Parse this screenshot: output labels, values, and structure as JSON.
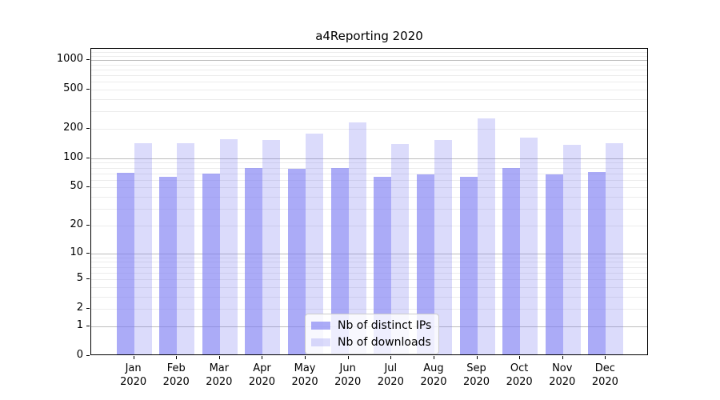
{
  "title": "a4Reporting 2020",
  "chart_data": {
    "type": "bar",
    "title": "a4Reporting 2020",
    "categories": [
      "Jan",
      "Feb",
      "Mar",
      "Apr",
      "May",
      "Jun",
      "Jul",
      "Aug",
      "Sep",
      "Oct",
      "Nov",
      "Dec"
    ],
    "category_year": "2020",
    "series": [
      {
        "name": "Nb of distinct IPs",
        "color": "rgba(122,122,242,0.63)",
        "values": [
          71,
          65,
          69,
          80,
          78,
          79,
          65,
          68,
          64,
          80,
          68,
          72
        ]
      },
      {
        "name": "Nb of downloads",
        "color": "rgba(122,122,242,0.27)",
        "values": [
          142,
          142,
          157,
          153,
          178,
          233,
          139,
          153,
          254,
          162,
          137,
          142
        ]
      }
    ],
    "xlabel": "",
    "ylabel": "",
    "yscale": "symlog",
    "ylim": [
      0,
      1300
    ],
    "yticks": [
      0,
      1,
      2,
      5,
      10,
      20,
      50,
      100,
      200,
      500,
      1000
    ],
    "grid_major": [
      1,
      10,
      100,
      1000
    ],
    "grid_minor": [
      2,
      3,
      4,
      5,
      6,
      7,
      8,
      9,
      20,
      30,
      40,
      50,
      60,
      70,
      80,
      90,
      200,
      300,
      400,
      500,
      600,
      700,
      800,
      900,
      1100,
      1200
    ],
    "grid": "on",
    "legend_position": "bottom-center",
    "colors": {
      "grid_major": "#bdbdbd",
      "grid_minor": "#ebebeb",
      "axis": "#000000",
      "background": "#ffffff"
    }
  }
}
